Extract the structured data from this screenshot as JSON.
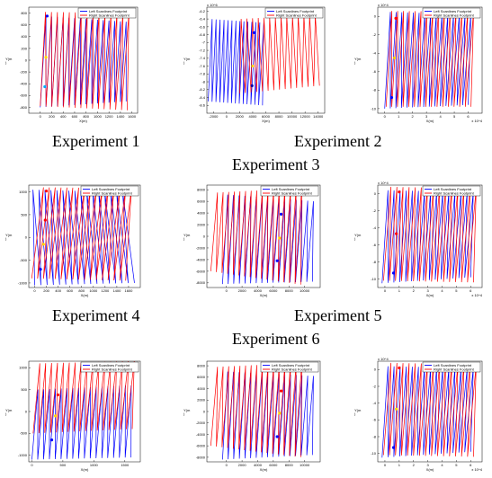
{
  "captions": {
    "row1_left": "Experiment 1",
    "row1_right": "Experiment 2",
    "row1_center": "Experiment 3",
    "row2_left": "Experiment 4",
    "row2_right": "Experiment 5",
    "row2_center": "Experiment 6"
  },
  "legend": {
    "left_label": "Left Scanlines Footprint",
    "right_label": "Right Scanlines Footprint",
    "left_color": "#0000ff",
    "right_color": "#ff0000"
  },
  "chart_data": [
    {
      "type": "line",
      "id": "p1",
      "xlabel": "X(m)",
      "ylabel": "Y(m\n)",
      "xlim": [
        -200,
        1700
      ],
      "ylim": [
        -900,
        900
      ],
      "xticks": [
        "0",
        "200",
        "400",
        "600",
        "800",
        "1000",
        "1200",
        "1400",
        "1600"
      ],
      "yticks": [
        "-800",
        "-600",
        "-400",
        "-200",
        "0",
        "200",
        "400",
        "600",
        "800"
      ],
      "x_multiplier": "",
      "y_multiplier": "",
      "series": [
        {
          "name": "Left Scanlines Footprint",
          "color": "#0000ff",
          "region": [
            [
              0,
              -800
            ],
            [
              1500,
              -700
            ],
            [
              1550,
              650
            ],
            [
              50,
              750
            ]
          ],
          "lines": 30
        },
        {
          "name": "Right Scanlines Footprint",
          "color": "#ff0000",
          "region": [
            [
              0,
              -780
            ],
            [
              1520,
              -850
            ],
            [
              1600,
              800
            ],
            [
              40,
              820
            ]
          ],
          "lines": 30
        }
      ],
      "markers": [
        {
          "x": 120,
          "y": 750,
          "color": "#0000ff"
        },
        {
          "x": 100,
          "y": 50,
          "color": "#ffd700"
        },
        {
          "x": 80,
          "y": -450,
          "color": "#00aaff"
        }
      ]
    },
    {
      "type": "line",
      "id": "p2",
      "xlabel": "X(m)",
      "ylabel": "Y(m\n)",
      "xlim": [
        -3000,
        15000
      ],
      "ylim": [
        -8.8,
        -6.1
      ],
      "xticks": [
        "-2000",
        "0",
        "2000",
        "4000",
        "6000",
        "8000",
        "10000",
        "12000",
        "14000"
      ],
      "yticks": [
        "-8.6",
        "-8.4",
        "-8.2",
        "-8",
        "-7.8",
        "-7.6",
        "-7.4",
        "-7.2",
        "-7",
        "-6.8",
        "-6.6",
        "-6.4",
        "-6.2"
      ],
      "x_multiplier": "",
      "y_multiplier": "x 10^6",
      "series": [
        {
          "name": "Left Scanlines Footprint",
          "color": "#0000ff",
          "region": [
            [
              -2800,
              -8.5
            ],
            [
              5500,
              -8.6
            ],
            [
              6000,
              -6.5
            ],
            [
              -2500,
              -6.4
            ]
          ],
          "lines": 28
        },
        {
          "name": "Right Scanlines Footprint",
          "color": "#ff0000",
          "region": [
            [
              2000,
              -8.3
            ],
            [
              14200,
              -8.1
            ],
            [
              14000,
              -6.3
            ],
            [
              1800,
              -6.4
            ]
          ],
          "lines": 28
        }
      ],
      "markers": [
        {
          "x": 4200,
          "y": -6.75,
          "color": "#0000ff"
        },
        {
          "x": 4000,
          "y": -7.6,
          "color": "#ffd700"
        },
        {
          "x": 3900,
          "y": -8.1,
          "color": "#0000aa"
        }
      ]
    },
    {
      "type": "line",
      "id": "p3",
      "xlabel": "X(m)",
      "ylabel": "Y(m\n)",
      "xlim": [
        -0.5,
        7
      ],
      "ylim": [
        -10.5,
        1
      ],
      "xticks": [
        "0",
        "1",
        "2",
        "3",
        "4",
        "5",
        "6"
      ],
      "yticks": [
        "-10",
        "-8",
        "-6",
        "-4",
        "-2",
        "0"
      ],
      "x_multiplier": "x 10^4",
      "y_multiplier": "x 10^4",
      "series": [
        {
          "name": "Left Scanlines Footprint",
          "color": "#0000ff",
          "region": [
            [
              0,
              -10
            ],
            [
              6,
              -9.6
            ],
            [
              6.4,
              0.2
            ],
            [
              0.2,
              0.5
            ]
          ],
          "lines": 30
        },
        {
          "name": "Right Scanlines Footprint",
          "color": "#ff0000",
          "region": [
            [
              0.1,
              -9.8
            ],
            [
              6.2,
              -9.8
            ],
            [
              6.6,
              0.5
            ],
            [
              0.3,
              0.6
            ]
          ],
          "lines": 30
        }
      ],
      "markers": [
        {
          "x": 0.8,
          "y": -0.2,
          "color": "#ff0000"
        },
        {
          "x": 0.7,
          "y": -4.5,
          "color": "#ffd700"
        },
        {
          "x": 0.5,
          "y": -8.8,
          "color": "#0000ff"
        }
      ]
    },
    {
      "type": "line",
      "id": "p4",
      "xlabel": "X(m)",
      "ylabel": "Y(m\n)",
      "xlim": [
        -100,
        1800
      ],
      "ylim": [
        -1100,
        1150
      ],
      "xticks": [
        "0",
        "200",
        "400",
        "600",
        "800",
        "1000",
        "1200",
        "1400",
        "1600"
      ],
      "yticks": [
        "-1000",
        "-500",
        "0",
        "500",
        "1000"
      ],
      "x_multiplier": "",
      "y_multiplier": "",
      "series": [
        {
          "name": "Left Scanlines Footprint",
          "color": "#0000ff",
          "region": [
            [
              0,
              -1050
            ],
            [
              1700,
              -1000
            ],
            [
              1550,
              1000
            ],
            [
              -80,
              1050
            ]
          ],
          "lines": 32
        },
        {
          "name": "Right Scanlines Footprint",
          "color": "#ff0000",
          "region": [
            [
              -50,
              -900
            ],
            [
              1550,
              -950
            ],
            [
              1700,
              1080
            ],
            [
              100,
              1100
            ]
          ],
          "lines": 32
        }
      ],
      "markers": [
        {
          "x": 200,
          "y": 1020,
          "color": "#ff0000"
        },
        {
          "x": 180,
          "y": 380,
          "color": "#ff0000"
        },
        {
          "x": 150,
          "y": -150,
          "color": "#ffd700"
        },
        {
          "x": 100,
          "y": -700,
          "color": "#0000ff"
        }
      ]
    },
    {
      "type": "line",
      "id": "p5",
      "xlabel": "X(m)",
      "ylabel": "Y(m\n)",
      "xlim": [
        -2500,
        12000
      ],
      "ylim": [
        -8800,
        8800
      ],
      "xticks": [
        "0",
        "2000",
        "4000",
        "6000",
        "8000",
        "10000"
      ],
      "yticks": [
        "-8000",
        "-6000",
        "-4000",
        "-2000",
        "0",
        "2000",
        "4000",
        "6000",
        "8000"
      ],
      "x_multiplier": "",
      "y_multiplier": "",
      "series": [
        {
          "name": "Left Scanlines Footprint",
          "color": "#0000ff",
          "region": [
            [
              -500,
              -8200
            ],
            [
              11000,
              -7800
            ],
            [
              11500,
              6000
            ],
            [
              -200,
              7200
            ]
          ],
          "lines": 32
        },
        {
          "name": "Right Scanlines Footprint",
          "color": "#ff0000",
          "region": [
            [
              -2000,
              -6000
            ],
            [
              9500,
              -8300
            ],
            [
              10000,
              8300
            ],
            [
              -1500,
              7500
            ]
          ],
          "lines": 32
        }
      ],
      "markers": [
        {
          "x": 7000,
          "y": 3800,
          "color": "#0000ff"
        },
        {
          "x": 6800,
          "y": -300,
          "color": "#ffd700"
        },
        {
          "x": 6500,
          "y": -4200,
          "color": "#0000ff"
        }
      ]
    },
    {
      "type": "line",
      "id": "p6",
      "xlabel": "X(m)",
      "ylabel": "Y(m\n)",
      "xlim": [
        -0.5,
        6.8
      ],
      "ylim": [
        -11,
        1
      ],
      "xticks": [
        "0",
        "1",
        "2",
        "3",
        "4",
        "5",
        "6"
      ],
      "yticks": [
        "-10",
        "-8",
        "-6",
        "-4",
        "-2",
        "0"
      ],
      "x_multiplier": "x 10^4",
      "y_multiplier": "x 10^4",
      "series": [
        {
          "name": "Left Scanlines Footprint",
          "color": "#0000ff",
          "region": [
            [
              -0.2,
              -10.5
            ],
            [
              6,
              -9.8
            ],
            [
              6.4,
              0.2
            ],
            [
              0,
              0.4
            ]
          ],
          "lines": 30
        },
        {
          "name": "Right Scanlines Footprint",
          "color": "#ff0000",
          "region": [
            [
              -0.1,
              -10.2
            ],
            [
              6.2,
              -10.4
            ],
            [
              6.6,
              0.6
            ],
            [
              0.2,
              0.8
            ]
          ],
          "lines": 30
        }
      ],
      "markers": [
        {
          "x": 1,
          "y": 0.2,
          "color": "#ff0000"
        },
        {
          "x": 0.8,
          "y": -4.7,
          "color": "#ff0000"
        },
        {
          "x": 0.6,
          "y": -9.3,
          "color": "#0000ff"
        }
      ]
    },
    {
      "type": "line",
      "id": "p7",
      "xlabel": "X(m)",
      "ylabel": "Y(m\n)",
      "xlim": [
        -50,
        1750
      ],
      "ylim": [
        -1150,
        1150
      ],
      "xticks": [
        "0",
        "500",
        "1000",
        "1500"
      ],
      "yticks": [
        "-1000",
        "-500",
        "0",
        "500",
        "1000"
      ],
      "x_multiplier": "",
      "y_multiplier": "",
      "series": [
        {
          "name": "Left Scanlines Footprint",
          "color": "#0000ff",
          "region": [
            [
              0,
              -1100
            ],
            [
              1600,
              -1050
            ],
            [
              1650,
              600
            ],
            [
              50,
              500
            ]
          ],
          "lines": 34
        },
        {
          "name": "Right Scanlines Footprint",
          "color": "#ff0000",
          "region": [
            [
              20,
              -500
            ],
            [
              1620,
              -400
            ],
            [
              1700,
              1150
            ],
            [
              80,
              1100
            ]
          ],
          "lines": 34
        }
      ],
      "markers": [
        {
          "x": 420,
          "y": 380,
          "color": "#ff0000"
        },
        {
          "x": 380,
          "y": -100,
          "color": "#ffd700"
        },
        {
          "x": 320,
          "y": -650,
          "color": "#0000ff"
        }
      ]
    },
    {
      "type": "line",
      "id": "p8",
      "xlabel": "X(m)",
      "ylabel": "Y(m\n)",
      "xlim": [
        -2500,
        12000
      ],
      "ylim": [
        -8800,
        8800
      ],
      "xticks": [
        "0",
        "2000",
        "4000",
        "6000",
        "8000",
        "10000"
      ],
      "yticks": [
        "-8000",
        "-6000",
        "-4000",
        "-2000",
        "0",
        "2000",
        "4000",
        "6000",
        "8000"
      ],
      "x_multiplier": "",
      "y_multiplier": "",
      "series": [
        {
          "name": "Left Scanlines Footprint",
          "color": "#0000ff",
          "region": [
            [
              -500,
              -8400
            ],
            [
              11000,
              -7600
            ],
            [
              11500,
              6200
            ],
            [
              -200,
              7000
            ]
          ],
          "lines": 32
        },
        {
          "name": "Right Scanlines Footprint",
          "color": "#ff0000",
          "region": [
            [
              -2000,
              -6000
            ],
            [
              9500,
              -8000
            ],
            [
              10000,
              8500
            ],
            [
              -1500,
              7800
            ]
          ],
          "lines": 32
        }
      ],
      "markers": [
        {
          "x": 7000,
          "y": 3600,
          "color": "#ff0000"
        },
        {
          "x": 6800,
          "y": -300,
          "color": "#ffd700"
        },
        {
          "x": 6500,
          "y": -4400,
          "color": "#0000ff"
        }
      ]
    },
    {
      "type": "line",
      "id": "p9",
      "xlabel": "X(m)",
      "ylabel": "Y(m\n)",
      "xlim": [
        -0.5,
        6.8
      ],
      "ylim": [
        -11,
        1
      ],
      "xticks": [
        "0",
        "1",
        "2",
        "3",
        "4",
        "5",
        "6"
      ],
      "yticks": [
        "-10",
        "-8",
        "-6",
        "-4",
        "-2",
        "0"
      ],
      "x_multiplier": "x 10^4",
      "y_multiplier": "x 10^4",
      "series": [
        {
          "name": "Left Scanlines Footprint",
          "color": "#0000ff",
          "region": [
            [
              -0.2,
              -10.5
            ],
            [
              6,
              -9.8
            ],
            [
              6.4,
              0.2
            ],
            [
              0,
              0.4
            ]
          ],
          "lines": 30
        },
        {
          "name": "Right Scanlines Footprint",
          "color": "#ff0000",
          "region": [
            [
              -0.1,
              -10.2
            ],
            [
              6.2,
              -10.4
            ],
            [
              6.6,
              0.6
            ],
            [
              0.2,
              0.8
            ]
          ],
          "lines": 30
        }
      ],
      "markers": [
        {
          "x": 1,
          "y": 0.2,
          "color": "#ff0000"
        },
        {
          "x": 0.8,
          "y": -4.7,
          "color": "#ffd700"
        },
        {
          "x": 0.6,
          "y": -9.3,
          "color": "#0000ff"
        }
      ]
    }
  ]
}
